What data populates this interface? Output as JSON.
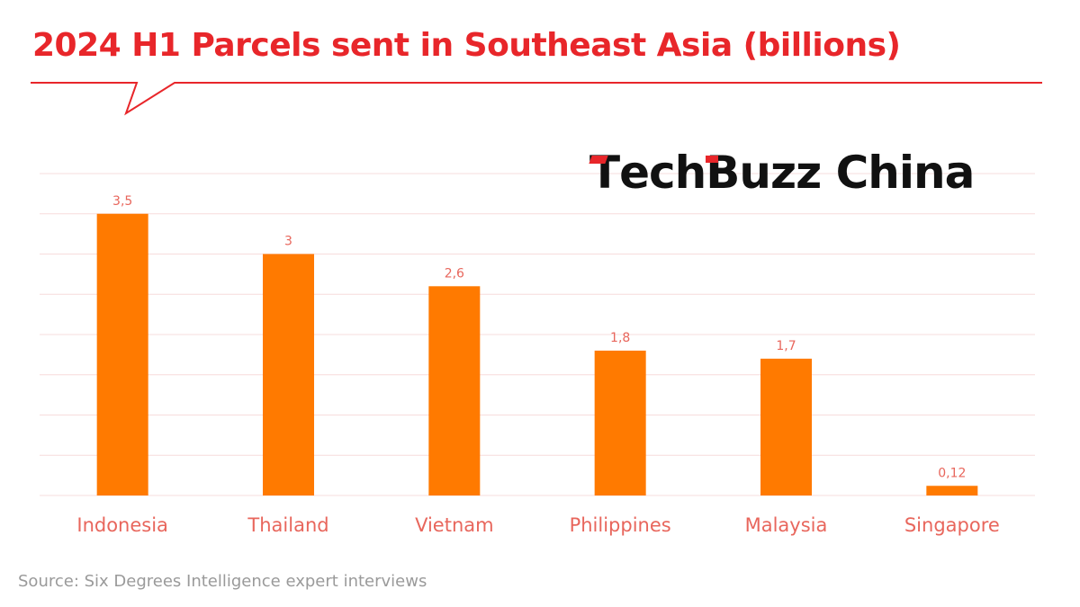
{
  "brand": {
    "logo_text": "TechBuzz China",
    "logo_color": "#111111",
    "accent_color": "#e8262a"
  },
  "footer": {
    "source": "Source: Six Degrees Intelligence expert interviews"
  },
  "chart_data": {
    "type": "bar",
    "title": "2024 H1 Parcels sent in Southeast Asia (billions)",
    "xlabel": "",
    "ylabel": "",
    "categories": [
      "Indonesia",
      "Thailand",
      "Vietnam",
      "Philippines",
      "Malaysia",
      "Singapore"
    ],
    "values": [
      3.5,
      3,
      2.6,
      1.8,
      1.7,
      0.12
    ],
    "data_labels": [
      "3,5",
      "3",
      "2,6",
      "1,8",
      "1,7",
      "0,12"
    ],
    "ylim": [
      0,
      4
    ],
    "grid": true,
    "legend": "none",
    "bar_color": "#ff7a00",
    "label_color": "#e8665c",
    "title_color": "#e8262a"
  }
}
